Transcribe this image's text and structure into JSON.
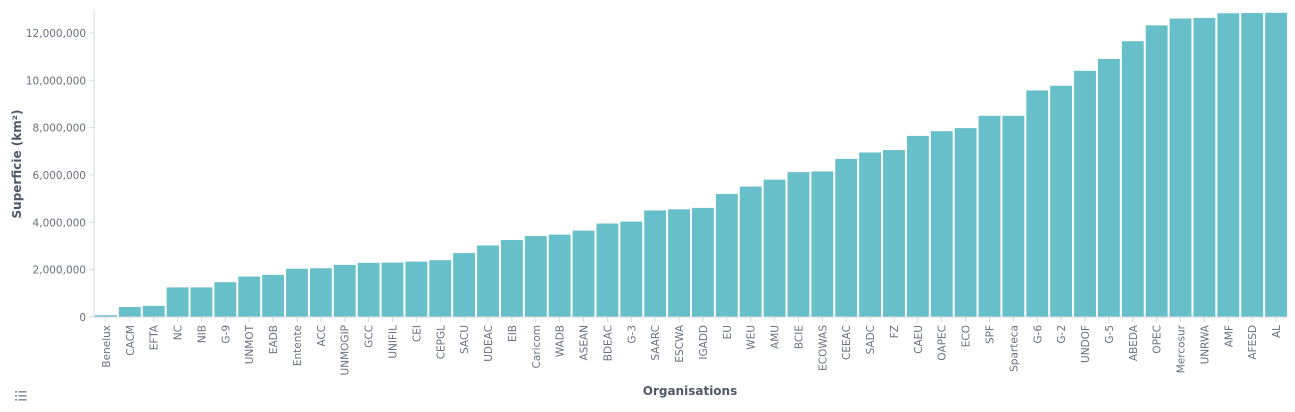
{
  "chart_data": {
    "type": "bar",
    "xlabel": "Organisations",
    "ylabel": "Superficie (km²)",
    "ylim": [
      0,
      12800000
    ],
    "yticks": [
      0,
      2000000,
      4000000,
      6000000,
      8000000,
      10000000,
      12000000
    ],
    "ytick_labels": [
      "0",
      "2,000,000",
      "4,000,000",
      "6,000,000",
      "8,000,000",
      "10,000,000",
      "12,000,000"
    ],
    "grid": false,
    "bar_color": "#66bfc9",
    "categories": [
      "Benelux",
      "CACM",
      "EFTA",
      "NC",
      "NIB",
      "G-9",
      "UNMOT",
      "EADB",
      "Entente",
      "ACC",
      "UNMOGIP",
      "GCC",
      "UNIFIL",
      "CEI",
      "CEPGL",
      "SACU",
      "UDEAC",
      "EIB",
      "Caricom",
      "WADB",
      "ASEAN",
      "BDEAC",
      "G-3",
      "SAARC",
      "ESCWA",
      "IGADD",
      "EU",
      "WEU",
      "AMU",
      "BCIE",
      "ECOWAS",
      "CEEAC",
      "SADC",
      "FZ",
      "CAEU",
      "OAPEC",
      "ECO",
      "SPF",
      "Sparteca",
      "G-6",
      "G-2",
      "UNDOF",
      "G-5",
      "ABEDA",
      "OPEC",
      "Mercosur",
      "UNRWA",
      "AMF",
      "AFESD",
      "AL"
    ],
    "values": [
      75000,
      420000,
      470000,
      1250000,
      1250000,
      1470000,
      1710000,
      1780000,
      2040000,
      2060000,
      2200000,
      2290000,
      2300000,
      2340000,
      2400000,
      2700000,
      3020000,
      3250000,
      3420000,
      3480000,
      3650000,
      3950000,
      4030000,
      4500000,
      4550000,
      4610000,
      5200000,
      5510000,
      5800000,
      6120000,
      6150000,
      6680000,
      6950000,
      7050000,
      7650000,
      7850000,
      7980000,
      8500000,
      8500000,
      9570000,
      9770000,
      10400000,
      10900000,
      11650000,
      12320000,
      12610000,
      12630000,
      12830000,
      12840000,
      12850000
    ]
  },
  "legend_toggle_icon": "list-icon"
}
